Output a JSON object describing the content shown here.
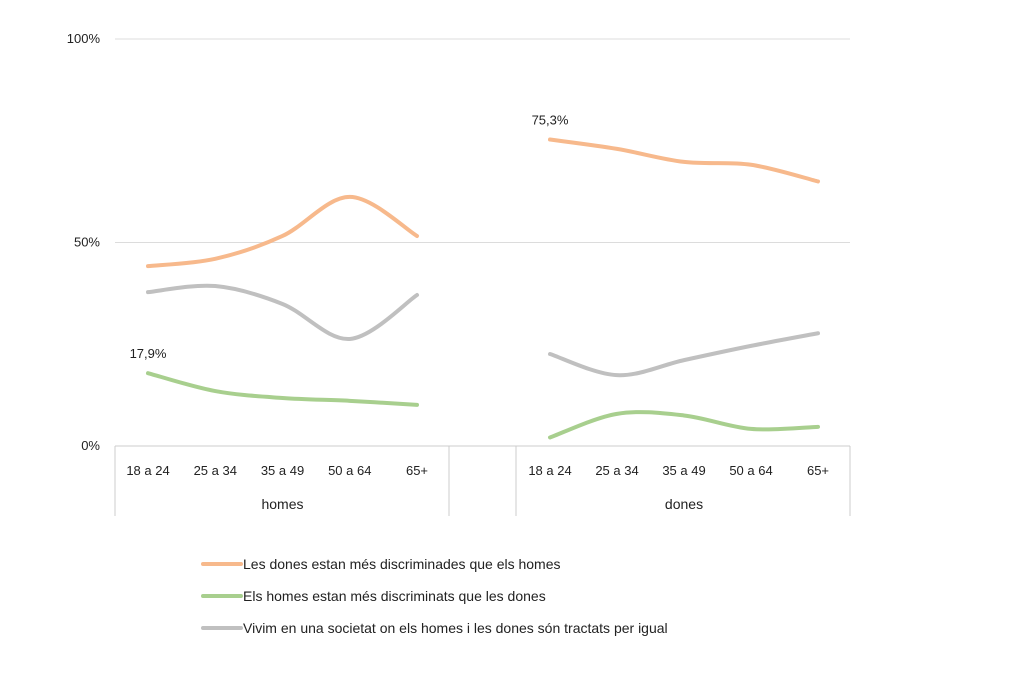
{
  "chart_data": {
    "type": "line",
    "groups": [
      {
        "label": "homes",
        "categories": [
          "18 a 24",
          "25 a 34",
          "35 a 49",
          "50 a 64",
          "65+"
        ]
      },
      {
        "label": "dones",
        "categories": [
          "18 a 24",
          "25 a 34",
          "35 a 49",
          "50 a 64",
          "65+"
        ]
      }
    ],
    "y_ticks": [
      "100%",
      "50%",
      "0%"
    ],
    "ylim": [
      0,
      100
    ],
    "grid": true,
    "legend_position": "bottom",
    "series": [
      {
        "name": "Les dones estan més discriminades que els homes",
        "color": "#F7B98C",
        "values": {
          "homes": [
            44.2,
            46.0,
            51.6,
            61.2,
            51.6
          ],
          "dones": [
            75.3,
            73.0,
            69.8,
            69.1,
            65.0
          ]
        },
        "labels": {
          "dones": {
            "index": 0,
            "text": "75,3%"
          }
        }
      },
      {
        "name": "Els homes estan més discriminats que les dones",
        "color": "#A8CF8E",
        "values": {
          "homes": [
            17.9,
            13.5,
            11.8,
            11.1,
            10.1
          ],
          "dones": [
            2.1,
            7.9,
            7.5,
            4.2,
            4.7
          ]
        },
        "labels": {
          "homes": {
            "index": 0,
            "text": "17,9%"
          }
        }
      },
      {
        "name": "Vivim en una societat on els homes i les dones són tractats per igual",
        "color": "#C0C0C0",
        "values": {
          "homes": [
            37.8,
            39.3,
            34.9,
            26.3,
            37.1
          ],
          "dones": [
            22.6,
            17.4,
            21.1,
            24.6,
            27.7
          ]
        }
      }
    ]
  }
}
